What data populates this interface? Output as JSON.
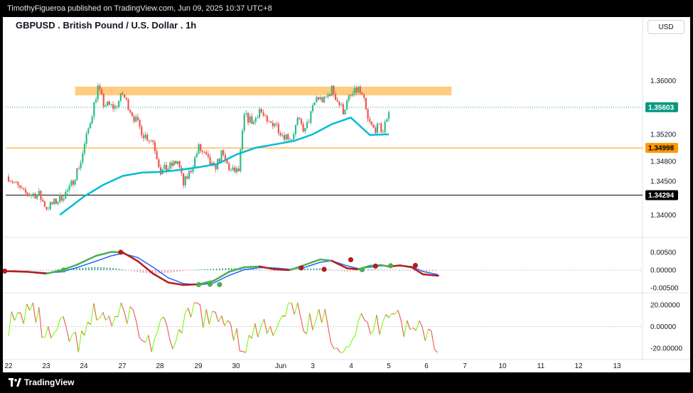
{
  "header": {
    "publisher_line": "TimothyFigueroa published on TradingView.com, Jun 09, 2025 10:37 UTC+8"
  },
  "chart": {
    "title": "GBPUSD . British Pound / U.S. Dollar . 1h",
    "currency_button": "USD"
  },
  "footer": {
    "brand": "TradingView"
  },
  "colors": {
    "up": "#2ebd85",
    "down": "#ef5350",
    "ma": "#00bcd4",
    "zone": "#ffcc80",
    "level_orange": "#ff9800",
    "level_black": "#000000",
    "price_tag": "#089981",
    "macd_fast": "#4caf50",
    "macd_slow": "#2962ff",
    "macd_red": "#b71c1c",
    "osc_up": "#76ff03",
    "osc_down": "#ef5350"
  },
  "chart_data": {
    "type": "candlestick",
    "symbol": "GBPUSD",
    "timeframe": "1h",
    "price_axis": {
      "ticks": [
        "1.36000",
        "1.35200",
        "1.34800",
        "1.34500",
        "1.34000"
      ],
      "range": [
        1.3375,
        1.3665
      ]
    },
    "x_axis_labels": [
      "22",
      "23",
      "24",
      "27",
      "28",
      "29",
      "30",
      "Jun",
      "3",
      "4",
      "5",
      "6",
      "7",
      "10",
      "11",
      "12",
      "13"
    ],
    "price_tags": [
      {
        "label": "1.35603",
        "value": 1.35603,
        "style": "current"
      },
      {
        "label": "1.34998",
        "value": 1.34998,
        "style": "orange"
      },
      {
        "label": "1.34294",
        "value": 1.34294,
        "style": "black"
      }
    ],
    "resistance_zone": {
      "from": 1.3578,
      "to": 1.3591
    },
    "horizontal_levels": [
      {
        "value": 1.34998
      },
      {
        "value": 1.34294
      }
    ],
    "close_path": [
      [
        22,
        1.3457
      ],
      [
        22.4,
        1.3432
      ],
      [
        22.8,
        1.343
      ],
      [
        23.0,
        1.341
      ],
      [
        23.3,
        1.3422
      ],
      [
        23.6,
        1.3438
      ],
      [
        23.9,
        1.348
      ],
      [
        24.1,
        1.3528
      ],
      [
        24.35,
        1.359
      ],
      [
        24.5,
        1.3565
      ],
      [
        24.8,
        1.356
      ],
      [
        25.0,
        1.358
      ],
      [
        25.3,
        1.3545
      ],
      [
        25.55,
        1.352
      ],
      [
        25.8,
        1.351
      ],
      [
        26.0,
        1.3465
      ],
      [
        26.2,
        1.347
      ],
      [
        26.45,
        1.348
      ],
      [
        26.6,
        1.3445
      ],
      [
        26.8,
        1.3468
      ],
      [
        27.0,
        1.35
      ],
      [
        27.2,
        1.3485
      ],
      [
        27.4,
        1.3468
      ],
      [
        27.6,
        1.349
      ],
      [
        27.85,
        1.3465
      ],
      [
        28.05,
        1.3465
      ],
      [
        28.2,
        1.3547
      ],
      [
        28.45,
        1.3538
      ],
      [
        28.6,
        1.3558
      ],
      [
        28.8,
        1.3535
      ],
      [
        29.0,
        1.3538
      ],
      [
        29.2,
        1.352
      ],
      [
        29.45,
        1.3515
      ],
      [
        29.6,
        1.354
      ],
      [
        29.8,
        1.3525
      ],
      [
        29.95,
        1.355
      ],
      [
        30.1,
        1.3575
      ],
      [
        30.3,
        1.357
      ],
      [
        30.5,
        1.3587
      ],
      [
        30.7,
        1.3565
      ],
      [
        30.8,
        1.3555
      ],
      [
        30.95,
        1.3573
      ],
      [
        31.1,
        1.3582
      ],
      [
        31.2,
        1.3588
      ],
      [
        31.35,
        1.3568
      ],
      [
        31.45,
        1.354
      ],
      [
        31.6,
        1.3528
      ],
      [
        31.75,
        1.353
      ],
      [
        31.85,
        1.3524
      ],
      [
        32.0,
        1.3556
      ]
    ],
    "moving_average": [
      [
        23.35,
        1.34
      ],
      [
        24.0,
        1.3428
      ],
      [
        24.5,
        1.3445
      ],
      [
        25.0,
        1.3458
      ],
      [
        25.5,
        1.3463
      ],
      [
        26.0,
        1.3464
      ],
      [
        26.5,
        1.3467
      ],
      [
        27.0,
        1.3471
      ],
      [
        27.5,
        1.3476
      ],
      [
        28.0,
        1.349
      ],
      [
        28.5,
        1.35
      ],
      [
        29.0,
        1.3505
      ],
      [
        29.5,
        1.351
      ],
      [
        30.0,
        1.352
      ],
      [
        30.5,
        1.3535
      ],
      [
        31.0,
        1.3545
      ],
      [
        31.5,
        1.3519
      ],
      [
        32.0,
        1.352
      ]
    ],
    "macd": {
      "axis_ticks": [
        "0.00500",
        "0.00000",
        "-0.00500"
      ],
      "range": [
        -0.0056,
        0.0068
      ],
      "fast": [
        [
          21.9,
          -0.0003
        ],
        [
          22.5,
          -0.0005
        ],
        [
          23.0,
          -0.001
        ],
        [
          23.4,
          0.0
        ],
        [
          23.8,
          0.0015
        ],
        [
          24.3,
          0.004
        ],
        [
          24.7,
          0.0051
        ],
        [
          25.0,
          0.005
        ],
        [
          25.4,
          0.0025
        ],
        [
          25.8,
          -0.001
        ],
        [
          26.2,
          -0.0035
        ],
        [
          26.6,
          -0.0042
        ],
        [
          27.0,
          -0.004
        ],
        [
          27.4,
          -0.003
        ],
        [
          27.8,
          -0.0005
        ],
        [
          28.2,
          0.0008
        ],
        [
          28.6,
          0.001
        ],
        [
          29.0,
          0.0002
        ],
        [
          29.4,
          0.0
        ],
        [
          29.8,
          0.0015
        ],
        [
          30.2,
          0.003
        ],
        [
          30.5,
          0.0026
        ],
        [
          30.9,
          0.0005
        ],
        [
          31.2,
          0.0002
        ],
        [
          31.5,
          0.0012
        ],
        [
          31.8,
          0.0014
        ],
        [
          32.0,
          0.001
        ],
        [
          32.3,
          0.0013
        ],
        [
          32.6,
          0.0008
        ],
        [
          32.9,
          -0.0012
        ],
        [
          33.3,
          -0.0016
        ]
      ],
      "slow": [
        [
          21.9,
          -0.0002
        ],
        [
          22.5,
          -0.0004
        ],
        [
          23.0,
          -0.0008
        ],
        [
          23.4,
          -0.0005
        ],
        [
          23.8,
          0.0007
        ],
        [
          24.3,
          0.0025
        ],
        [
          24.7,
          0.004
        ],
        [
          25.0,
          0.0047
        ],
        [
          25.4,
          0.0035
        ],
        [
          25.8,
          0.0008
        ],
        [
          26.2,
          -0.0022
        ],
        [
          26.6,
          -0.0038
        ],
        [
          27.0,
          -0.0042
        ],
        [
          27.4,
          -0.0036
        ],
        [
          27.8,
          -0.0015
        ],
        [
          28.2,
          0.0001
        ],
        [
          28.6,
          0.0007
        ],
        [
          29.0,
          0.0006
        ],
        [
          29.4,
          0.0002
        ],
        [
          29.8,
          0.0008
        ],
        [
          30.2,
          0.0022
        ],
        [
          30.5,
          0.0026
        ],
        [
          30.9,
          0.0012
        ],
        [
          31.2,
          0.0004
        ],
        [
          31.5,
          0.0008
        ],
        [
          31.8,
          0.0012
        ],
        [
          32.0,
          0.0012
        ],
        [
          32.3,
          0.0012
        ],
        [
          32.6,
          0.001
        ],
        [
          32.9,
          -0.0004
        ],
        [
          33.3,
          -0.0013
        ]
      ],
      "signals": [
        {
          "x": 21.9,
          "y": -0.0003,
          "type": "bear"
        },
        {
          "x": 23.45,
          "y": 0.0,
          "type": "bull"
        },
        {
          "x": 24.95,
          "y": 0.005,
          "type": "bear"
        },
        {
          "x": 27.0,
          "y": -0.0041,
          "type": "bull"
        },
        {
          "x": 27.3,
          "y": -0.004,
          "type": "bull"
        },
        {
          "x": 27.55,
          "y": -0.0041,
          "type": "bull"
        },
        {
          "x": 29.7,
          "y": 0.0006,
          "type": "bear"
        },
        {
          "x": 30.3,
          "y": 0.0002,
          "type": "bear"
        },
        {
          "x": 31.3,
          "y": 0.0001,
          "type": "bull"
        },
        {
          "x": 31.0,
          "y": 0.0029,
          "type": "bear"
        },
        {
          "x": 32.05,
          "y": 0.0012,
          "type": "bull"
        },
        {
          "x": 32.7,
          "y": 0.0013,
          "type": "bear"
        },
        {
          "x": 31.65,
          "y": 0.0011,
          "type": "bear"
        }
      ]
    },
    "oscillator": {
      "axis_ticks": [
        "20.00000",
        "0.00000",
        "-20.00000"
      ],
      "range": [
        -28,
        28
      ]
    }
  }
}
